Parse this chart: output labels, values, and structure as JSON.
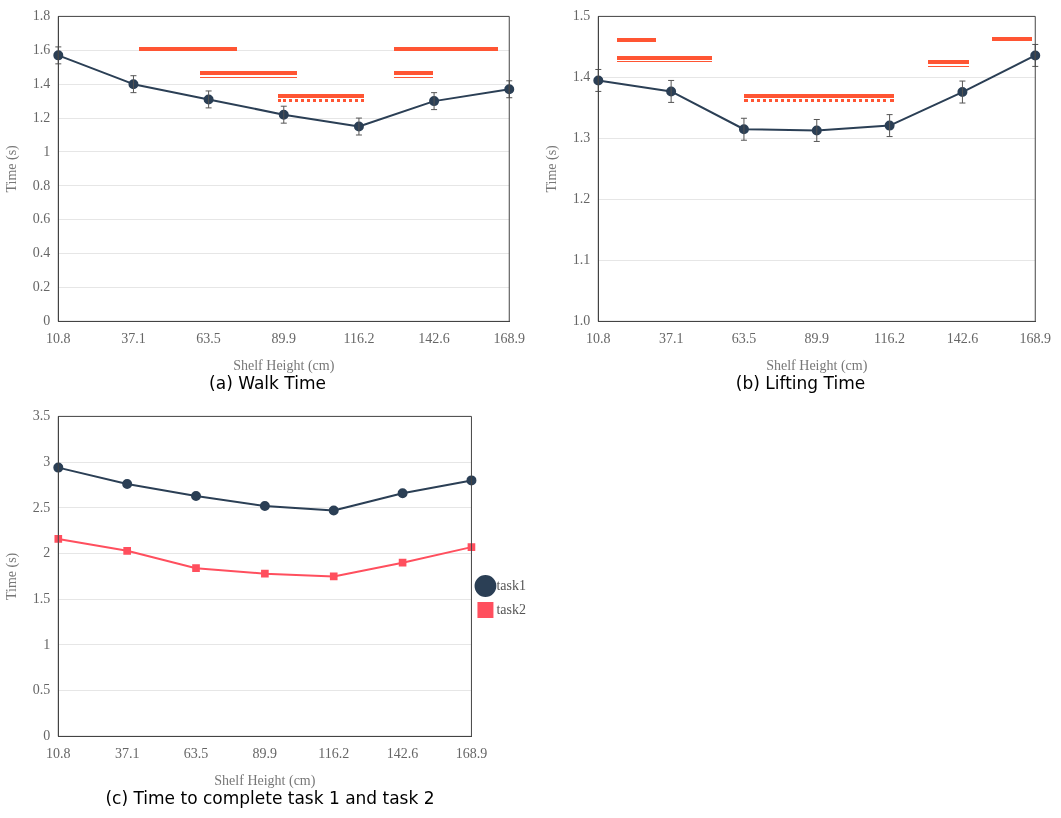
{
  "chart_data": [
    {
      "type": "line",
      "title": "(a) Walk Time",
      "xlabel": "Shelf Height (cm)",
      "ylabel": "Time (s)",
      "categories": [
        "10.8",
        "37.1",
        "63.5",
        "89.9",
        "116.2",
        "142.6",
        "168.9"
      ],
      "series": [
        {
          "color": "#2b3f55",
          "values": [
            1.57,
            1.4,
            1.31,
            1.22,
            1.15,
            1.3,
            1.37
          ],
          "errors": [
            0.05,
            0.05,
            0.05,
            0.05,
            0.05,
            0.05,
            0.05
          ]
        }
      ],
      "ylim": [
        0,
        1.8
      ],
      "yticks": [
        0,
        0.2,
        0.4,
        0.6,
        0.8,
        1,
        1.2,
        1.4,
        1.6,
        1.8
      ],
      "grid": "y",
      "marker": "circle",
      "legend": false
    },
    {
      "type": "line",
      "title": "(b) Lifting Time",
      "xlabel": "Shelf Height (cm)",
      "ylabel": "Time (s)",
      "categories": [
        "10.8",
        "37.1",
        "63.5",
        "89.9",
        "116.2",
        "142.6",
        "168.9"
      ],
      "series": [
        {
          "color": "#2b3f55",
          "values": [
            1.395,
            1.377,
            1.315,
            1.313,
            1.321,
            1.376,
            1.436
          ],
          "errors": [
            0.018,
            0.018,
            0.018,
            0.018,
            0.018,
            0.018,
            0.018
          ]
        }
      ],
      "ylim": [
        1,
        1.5
      ],
      "yticks": [
        {
          "value": 1,
          "label": "1.0"
        },
        1.1,
        1.2,
        1.3,
        1.4,
        1.5
      ],
      "grid": "y",
      "marker": "circle",
      "legend": false
    },
    {
      "type": "line",
      "title": "(c) Time to complete task 1 and task 2",
      "xlabel": "Shelf Height (cm)",
      "ylabel": "Time (s)",
      "categories": [
        "10.8",
        "37.1",
        "63.5",
        "89.9",
        "116.2",
        "142.6",
        "168.9"
      ],
      "series": [
        {
          "name": "task1",
          "color": "#2b3f55",
          "marker": "circle",
          "values": [
            2.94,
            2.76,
            2.63,
            2.52,
            2.47,
            2.66,
            2.8
          ]
        },
        {
          "name": "task2",
          "color": "#ff4f5e",
          "marker": "square",
          "values": [
            2.16,
            2.03,
            1.84,
            1.78,
            1.75,
            1.9,
            2.07
          ]
        }
      ],
      "ylim": [
        0,
        3.5
      ],
      "yticks": [
        0,
        0.5,
        1,
        1.5,
        2,
        2.5,
        3,
        3.5
      ],
      "grid": "y",
      "legend": "right"
    }
  ]
}
